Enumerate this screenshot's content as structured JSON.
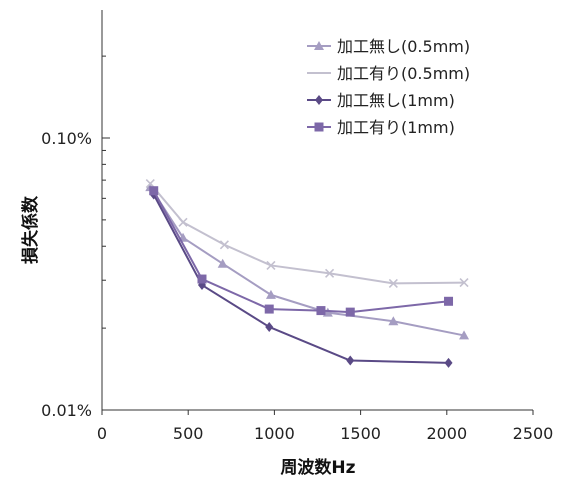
{
  "chart_data": {
    "type": "line",
    "title": "",
    "xlabel": "周波数Hz",
    "ylabel": "損失係数",
    "xlim": [
      0,
      2500
    ],
    "ylim": [
      0.0001,
      0.003
    ],
    "y_scale": "log",
    "x_ticks": [
      0,
      500,
      1000,
      1500,
      2000,
      2500
    ],
    "x_tick_labels": [
      "0",
      "500",
      "1000",
      "1500",
      "2000",
      "2500"
    ],
    "y_ticks": [
      0.0001,
      0.001
    ],
    "y_tick_labels": [
      "0.01%",
      "0.10%"
    ],
    "grid": false,
    "legend_position": "top-right",
    "series": [
      {
        "name": "加工無し(0.5mm)",
        "color": "#a59dc2",
        "marker": "triangle",
        "x": [
          280,
          470,
          700,
          980,
          1310,
          1690,
          2100
        ],
        "y": [
          0.00066,
          0.00043,
          0.000345,
          0.000265,
          0.000228,
          0.000212,
          0.000188
        ]
      },
      {
        "name": "加工有り(0.5mm)",
        "color": "#c3c0cf",
        "marker": "x",
        "x": [
          280,
          470,
          710,
          980,
          1320,
          1690,
          2100
        ],
        "y": [
          0.00068,
          0.00049,
          0.000405,
          0.00034,
          0.000318,
          0.000292,
          0.000294
        ]
      },
      {
        "name": "加工無し(1mm)",
        "color": "#5a4a86",
        "marker": "diamond",
        "x": [
          300,
          580,
          970,
          1440,
          2010
        ],
        "y": [
          0.00062,
          0.000288,
          0.000202,
          0.000152,
          0.000149
        ]
      },
      {
        "name": "加工有り(1mm)",
        "color": "#7d68a8",
        "marker": "square",
        "x": [
          300,
          580,
          970,
          1270,
          1440,
          2010
        ],
        "y": [
          0.00064,
          0.000303,
          0.000235,
          0.000232,
          0.000229,
          0.000251
        ]
      }
    ]
  }
}
